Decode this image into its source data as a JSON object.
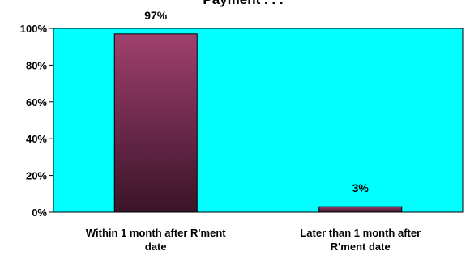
{
  "chart_data": {
    "type": "bar",
    "title": "Payment . . .",
    "categories": [
      [
        "Within 1 month after R'ment",
        "date"
      ],
      [
        "Later than 1 month after",
        "R'ment date"
      ]
    ],
    "values": [
      97,
      3
    ],
    "data_labels": [
      "97%",
      "3%"
    ],
    "y_ticks": [
      "0%",
      "20%",
      "40%",
      "60%",
      "80%",
      "100%"
    ],
    "ylim": [
      0,
      100
    ],
    "grid": false,
    "legend": "none",
    "colors": {
      "plot_background": "#00FFFF",
      "bar_top": "#A0406E",
      "bar_bottom": "#3A1428",
      "bar_stroke": "#000000"
    }
  }
}
